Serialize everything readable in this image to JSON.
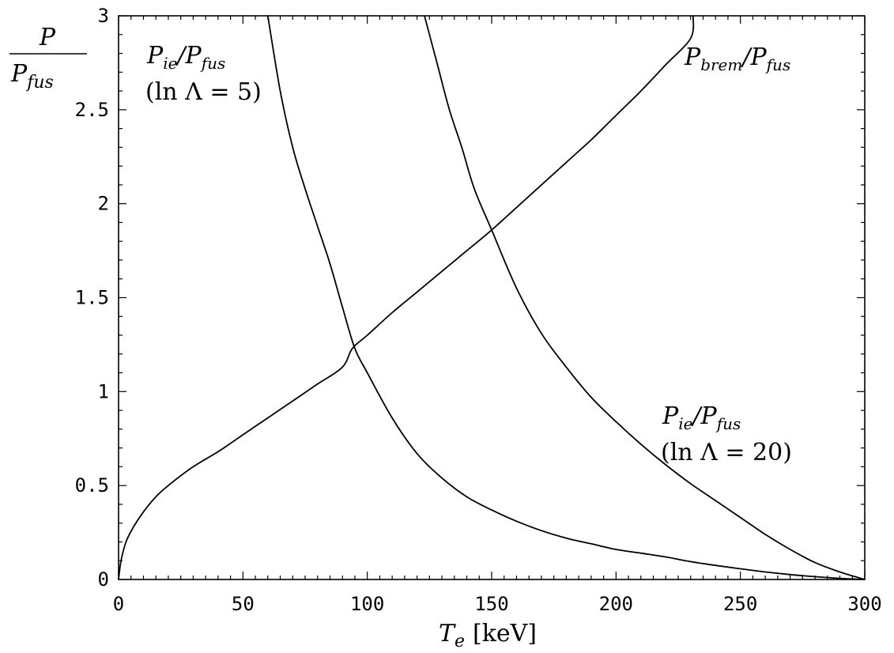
{
  "chart_data": {
    "type": "line",
    "title": "",
    "xlabel": {
      "symbol": "T",
      "subscript": "e",
      "unit": "[keV]"
    },
    "ylabel": {
      "numerator": "P",
      "denominator_symbol": "P",
      "denominator_subscript": "fus"
    },
    "xlim": [
      0,
      300
    ],
    "ylim": [
      0,
      3
    ],
    "x_ticks": [
      {
        "value": 0,
        "label": "0"
      },
      {
        "value": 50,
        "label": "50"
      },
      {
        "value": 100,
        "label": "100"
      },
      {
        "value": 150,
        "label": "150"
      },
      {
        "value": 200,
        "label": "200"
      },
      {
        "value": 250,
        "label": "250"
      },
      {
        "value": 300,
        "label": "300"
      }
    ],
    "y_ticks": [
      {
        "value": 0,
        "label": "0"
      },
      {
        "value": 0.5,
        "label": "0.5"
      },
      {
        "value": 1,
        "label": "1"
      },
      {
        "value": 1.5,
        "label": "1.5"
      },
      {
        "value": 2,
        "label": "2"
      },
      {
        "value": 2.5,
        "label": "2.5"
      },
      {
        "value": 3,
        "label": "3"
      }
    ],
    "grid": false,
    "series": [
      {
        "label": {
          "symbol": "P",
          "subscript": "brem",
          "over": "P",
          "over_subscript": "fus",
          "note": ""
        },
        "points": [
          [
            0,
            0
          ],
          [
            1,
            0.1
          ],
          [
            3,
            0.2
          ],
          [
            6,
            0.28
          ],
          [
            10,
            0.36
          ],
          [
            15,
            0.44
          ],
          [
            20,
            0.5
          ],
          [
            30,
            0.6
          ],
          [
            40,
            0.68
          ],
          [
            50,
            0.77
          ],
          [
            60,
            0.86
          ],
          [
            70,
            0.95
          ],
          [
            80,
            1.04
          ],
          [
            90,
            1.13
          ],
          [
            94,
            1.23
          ],
          [
            100,
            1.3
          ],
          [
            110,
            1.42
          ],
          [
            120,
            1.53
          ],
          [
            130,
            1.64
          ],
          [
            140,
            1.75
          ],
          [
            150,
            1.86
          ],
          [
            160,
            1.98
          ],
          [
            170,
            2.1
          ],
          [
            180,
            2.22
          ],
          [
            190,
            2.34
          ],
          [
            200,
            2.47
          ],
          [
            210,
            2.6
          ],
          [
            220,
            2.74
          ],
          [
            230,
            2.88
          ],
          [
            231,
            3.0
          ]
        ]
      },
      {
        "label": {
          "symbol": "P",
          "subscript": "ie",
          "over": "P",
          "over_subscript": "fus",
          "note": "(ln Λ = 5)"
        },
        "points": [
          [
            60,
            3.0
          ],
          [
            65,
            2.6
          ],
          [
            70,
            2.3
          ],
          [
            75,
            2.08
          ],
          [
            80,
            1.88
          ],
          [
            85,
            1.68
          ],
          [
            90,
            1.45
          ],
          [
            95,
            1.23
          ],
          [
            100,
            1.1
          ],
          [
            110,
            0.86
          ],
          [
            120,
            0.67
          ],
          [
            130,
            0.54
          ],
          [
            140,
            0.44
          ],
          [
            150,
            0.37
          ],
          [
            160,
            0.31
          ],
          [
            170,
            0.26
          ],
          [
            180,
            0.22
          ],
          [
            190,
            0.19
          ],
          [
            200,
            0.16
          ],
          [
            210,
            0.14
          ],
          [
            220,
            0.12
          ],
          [
            230,
            0.095
          ],
          [
            240,
            0.075
          ],
          [
            250,
            0.057
          ],
          [
            260,
            0.04
          ],
          [
            270,
            0.026
          ],
          [
            280,
            0.015
          ],
          [
            290,
            0.006
          ],
          [
            300,
            0.0
          ]
        ]
      },
      {
        "label": {
          "symbol": "P",
          "subscript": "ie",
          "over": "P",
          "over_subscript": "fus",
          "note": "(ln Λ = 20)"
        },
        "points": [
          [
            123,
            3.0
          ],
          [
            128,
            2.75
          ],
          [
            133,
            2.5
          ],
          [
            138,
            2.3
          ],
          [
            143,
            2.08
          ],
          [
            150,
            1.86
          ],
          [
            160,
            1.55
          ],
          [
            170,
            1.31
          ],
          [
            180,
            1.13
          ],
          [
            190,
            0.97
          ],
          [
            200,
            0.84
          ],
          [
            210,
            0.72
          ],
          [
            220,
            0.61
          ],
          [
            230,
            0.51
          ],
          [
            240,
            0.42
          ],
          [
            250,
            0.33
          ],
          [
            260,
            0.24
          ],
          [
            270,
            0.16
          ],
          [
            280,
            0.09
          ],
          [
            290,
            0.04
          ],
          [
            300,
            0.0
          ]
        ]
      }
    ]
  }
}
